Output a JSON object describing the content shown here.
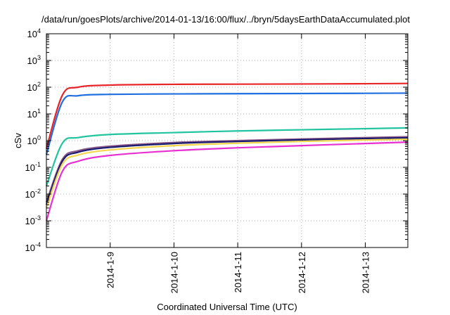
{
  "chart_data": {
    "type": "line",
    "title": "/data/run/goesPlots/archive/2014-01-13/16:00/flux/../bryn/5daysEarthDataAccumulated.plot",
    "xlabel": "Coordinated Universal Time (UTC)",
    "ylabel": "cSv",
    "yscale": "log",
    "ylim": [
      0.0001,
      10000
    ],
    "xlim": [
      "2014-01-08T00:00",
      "2014-01-13T16:00"
    ],
    "x_ticks": [
      "2014-1-9",
      "2014-1-10",
      "2014-1-11",
      "2014-1-12",
      "2014-1-13"
    ],
    "y_ticks": [
      {
        "base": "10",
        "exp": "-4"
      },
      {
        "base": "10",
        "exp": "-3"
      },
      {
        "base": "10",
        "exp": "-2"
      },
      {
        "base": "10",
        "exp": "-1"
      },
      {
        "base": "10",
        "exp": "0"
      },
      {
        "base": "10",
        "exp": "1"
      },
      {
        "base": "10",
        "exp": "2"
      },
      {
        "base": "10",
        "exp": "3"
      },
      {
        "base": "10",
        "exp": "4"
      }
    ],
    "grid": true,
    "series": [
      {
        "color": "#e8262a",
        "x": [
          "2014-01-08T00:00",
          "2014-01-08T06:00",
          "2014-01-08T12:00",
          "2014-01-09T00:00",
          "2014-01-10T00:00",
          "2014-01-11T00:00",
          "2014-01-12T00:00",
          "2014-01-13T00:00",
          "2014-01-13T16:00"
        ],
        "values": [
          0.5,
          50,
          100,
          120,
          128,
          130,
          132,
          135,
          138
        ]
      },
      {
        "color": "#1f6fe0",
        "x": [
          "2014-01-08T00:00",
          "2014-01-08T06:00",
          "2014-01-08T12:00",
          "2014-01-09T00:00",
          "2014-01-10T00:00",
          "2014-01-11T00:00",
          "2014-01-12T00:00",
          "2014-01-13T00:00",
          "2014-01-13T16:00"
        ],
        "values": [
          0.3,
          28,
          48,
          54,
          56,
          57,
          58,
          59,
          60
        ]
      },
      {
        "color": "#20c5a0",
        "x": [
          "2014-01-08T00:00",
          "2014-01-08T06:00",
          "2014-01-08T12:00",
          "2014-01-09T00:00",
          "2014-01-10T00:00",
          "2014-01-11T00:00",
          "2014-01-12T00:00",
          "2014-01-13T00:00",
          "2014-01-13T16:00"
        ],
        "values": [
          0.02,
          0.8,
          1.3,
          1.7,
          2.0,
          2.3,
          2.55,
          2.8,
          3.0
        ]
      },
      {
        "color": "#8a5a8a",
        "x": [
          "2014-01-08T00:00",
          "2014-01-08T06:00",
          "2014-01-08T12:00",
          "2014-01-09T00:00",
          "2014-01-10T00:00",
          "2014-01-11T00:00",
          "2014-01-12T00:00",
          "2014-01-13T00:00",
          "2014-01-13T16:00"
        ],
        "values": [
          0.005,
          0.2,
          0.42,
          0.62,
          0.85,
          1.0,
          1.15,
          1.3,
          1.4
        ]
      },
      {
        "color": "#1c1c6e",
        "x": [
          "2014-01-08T00:00",
          "2014-01-08T06:00",
          "2014-01-08T12:00",
          "2014-01-09T00:00",
          "2014-01-10T00:00",
          "2014-01-11T00:00",
          "2014-01-12T00:00",
          "2014-01-13T00:00",
          "2014-01-13T16:00"
        ],
        "values": [
          0.004,
          0.17,
          0.37,
          0.56,
          0.78,
          0.93,
          1.07,
          1.2,
          1.28
        ]
      },
      {
        "color": "#f3d650",
        "x": [
          "2014-01-08T00:00",
          "2014-01-08T06:00",
          "2014-01-08T12:00",
          "2014-01-09T00:00",
          "2014-01-10T00:00",
          "2014-01-11T00:00",
          "2014-01-12T00:00",
          "2014-01-13T00:00",
          "2014-01-13T16:00"
        ],
        "values": [
          0.003,
          0.13,
          0.29,
          0.45,
          0.65,
          0.8,
          0.93,
          1.05,
          1.12
        ]
      },
      {
        "color": "#e830d0",
        "x": [
          "2014-01-08T00:00",
          "2014-01-08T06:00",
          "2014-01-08T12:00",
          "2014-01-09T00:00",
          "2014-01-10T00:00",
          "2014-01-11T00:00",
          "2014-01-12T00:00",
          "2014-01-13T00:00",
          "2014-01-13T16:00"
        ],
        "values": [
          0.001,
          0.07,
          0.17,
          0.28,
          0.42,
          0.54,
          0.65,
          0.78,
          0.88
        ]
      }
    ]
  }
}
